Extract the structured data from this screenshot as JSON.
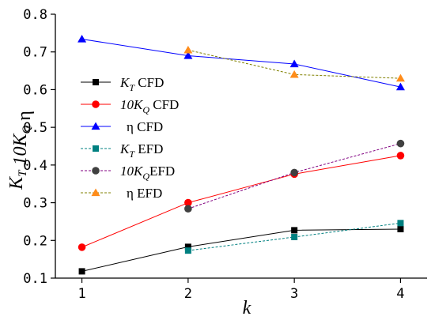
{
  "chart_data": {
    "type": "line",
    "x": [
      1,
      2,
      3,
      4
    ],
    "xlabel": "k",
    "ylabel": "K_T 10K_Q η",
    "xlim": [
      0.75,
      4.25
    ],
    "ylim": [
      0.1,
      0.8
    ],
    "xticks": [
      "1",
      "2",
      "3",
      "4"
    ],
    "yticks": [
      "0.1",
      "0.2",
      "0.3",
      "0.4",
      "0.5",
      "0.6",
      "0.7",
      "0.8"
    ],
    "grid": false,
    "legend_position": "middle-left",
    "series": [
      {
        "name": "K_T CFD",
        "legend_main": "K",
        "legend_sub": "T",
        "legend_rest": " CFD",
        "color": "#000000",
        "marker": "square",
        "dashed": false,
        "values": [
          0.118,
          0.183,
          0.227,
          0.23
        ]
      },
      {
        "name": "10K_Q CFD",
        "legend_main": "10K",
        "legend_sub": "Q",
        "legend_rest": " CFD",
        "color": "#ff0000",
        "marker": "circle",
        "dashed": false,
        "values": [
          0.182,
          0.3,
          0.376,
          0.425
        ]
      },
      {
        "name": "η CFD",
        "legend_main": "",
        "legend_sub": "",
        "legend_rest": "η CFD",
        "color": "#0000ff",
        "marker": "triangle",
        "dashed": false,
        "values": [
          0.734,
          0.69,
          0.668,
          0.607
        ]
      },
      {
        "name": "K_T EFD",
        "legend_main": "K",
        "legend_sub": "T",
        "legend_rest": " EFD",
        "color": "#008080",
        "marker": "square",
        "dashed": true,
        "x": [
          2,
          3,
          4
        ],
        "values": [
          0.173,
          0.209,
          0.246
        ]
      },
      {
        "name": "10K_Q EFD",
        "legend_main": "10K",
        "legend_sub": "Q",
        "legend_rest": "EFD",
        "color": "#800080",
        "marker": "circle-gray",
        "dashed": true,
        "x": [
          2,
          3,
          4
        ],
        "values": [
          0.284,
          0.38,
          0.457
        ]
      },
      {
        "name": "η EFD",
        "legend_main": "",
        "legend_sub": "",
        "legend_rest": "η EFD",
        "color": "#808000",
        "marker": "triangle-orange",
        "dashed": true,
        "x": [
          2,
          3,
          4
        ],
        "values": [
          0.705,
          0.64,
          0.63
        ]
      }
    ]
  }
}
